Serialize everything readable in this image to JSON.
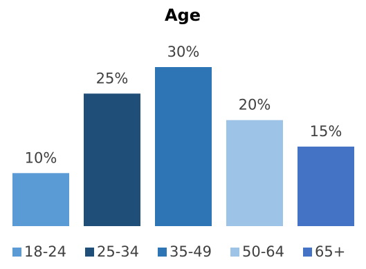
{
  "chart_data": {
    "type": "bar",
    "title": "Age",
    "categories": [
      "18-24",
      "25-34",
      "35-49",
      "50-64",
      "65+"
    ],
    "values": [
      10,
      25,
      30,
      20,
      15
    ],
    "data_labels": [
      "10%",
      "25%",
      "30%",
      "20%",
      "15%"
    ],
    "colors": [
      "#5b9bd5",
      "#1f4e79",
      "#2e75b6",
      "#9dc3e6",
      "#4472c4"
    ],
    "unit": "%",
    "ylim": [
      0,
      30
    ],
    "grid": false,
    "legend": "bottom",
    "xlabel": "",
    "ylabel": ""
  }
}
